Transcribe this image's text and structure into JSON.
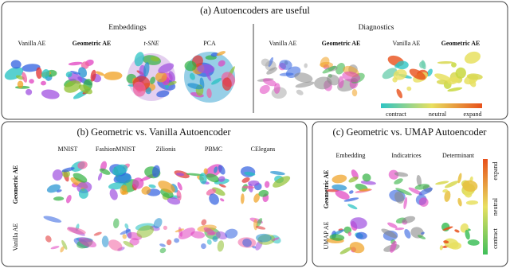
{
  "panel_a": {
    "title": "(a) Autoencoders are useful",
    "embeddings": {
      "heading": "Embeddings",
      "labels": [
        "Vanilla AE",
        "Geometric AE",
        "t-SNE",
        "PCA"
      ]
    },
    "diagnostics": {
      "heading": "Diagnostics",
      "labels": [
        "Vanilla AE",
        "Geometric AE",
        "Vanilla AE",
        "Geometric AE"
      ]
    },
    "colorbar": [
      "contract",
      "neutral",
      "expand"
    ]
  },
  "panel_b": {
    "title": "(b) Geometric vs. Vanilla Autoencoder",
    "columns": [
      "MNIST",
      "FashionMNIST",
      "Zilionis",
      "PBMC",
      "CElegans"
    ],
    "rows": [
      "Geometric AE",
      "Vanilla AE"
    ]
  },
  "panel_c": {
    "title": "(c) Geometric vs. UMAP Autoencoder",
    "columns": [
      "Embedding",
      "Indicatrices",
      "Determinant"
    ],
    "rows": [
      "Geometric AE",
      "UMAP AE"
    ],
    "colorbar": [
      "contract",
      "neutral",
      "expand"
    ]
  }
}
